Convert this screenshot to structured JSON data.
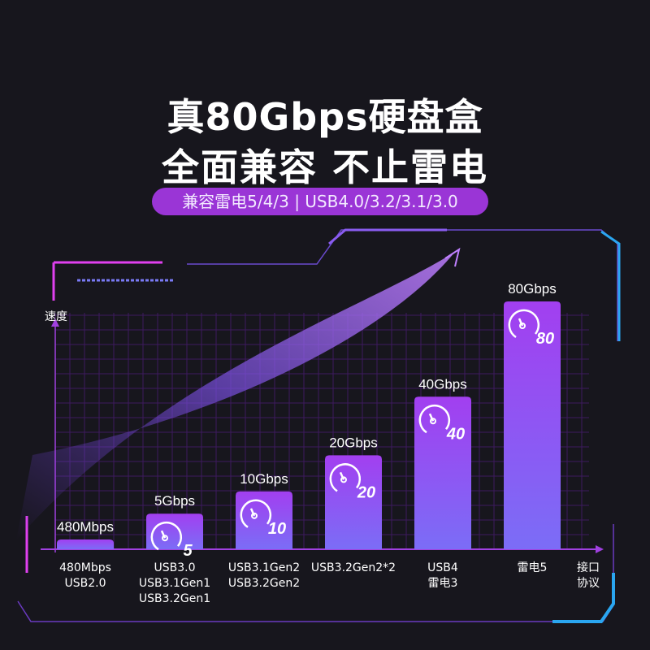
{
  "header": {
    "title_line1": "真80Gbps硬盘盒",
    "title_line2": "全面兼容 不止雷电",
    "compat_pill": "兼容雷电5/4/3 | USB4.0/3.2/3.1/3.0"
  },
  "chart_data": {
    "type": "bar",
    "title": "",
    "ylabel": "速度",
    "xlabel": "接口\n协议",
    "categories": [
      "480Mbps\nUSB2.0",
      "USB3.0\nUSB3.1Gen1\nUSB3.2Gen1",
      "USB3.1Gen2\nUSB3.2Gen2",
      "USB3.2Gen2*2",
      "USB4\n雷电3",
      "雷电5"
    ],
    "values_gbps": [
      0.48,
      5,
      10,
      20,
      40,
      80
    ],
    "data_labels": [
      "480Mbps",
      "5Gbps",
      "10Gbps",
      "20Gbps",
      "40Gbps",
      "80Gbps"
    ],
    "icon_numbers": [
      "",
      "5",
      "10",
      "20",
      "40",
      "80"
    ],
    "grid": true
  },
  "colors": {
    "background": "#17161d",
    "accent": "#9a35d6",
    "bar_top": "#a23ff0",
    "bar_bottom": "#7b6df6",
    "grid": "#4a1f6e",
    "cyan": "#2aa6f0",
    "pink": "#e040f0"
  }
}
